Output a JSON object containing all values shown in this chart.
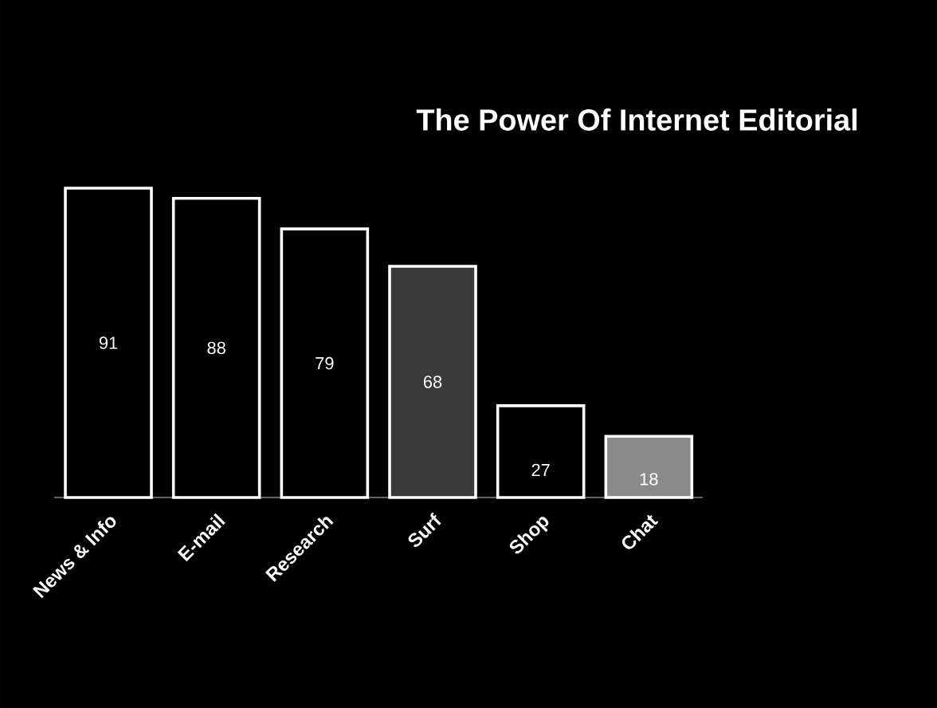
{
  "chart_data": {
    "type": "bar",
    "title": "The Power Of Internet Editorial",
    "categories": [
      "News & Info",
      "E-mail",
      "Research",
      "Surf",
      "Shop",
      "Chat"
    ],
    "values": [
      91,
      88,
      79,
      68,
      27,
      18
    ],
    "colors": [
      "#000000",
      "#000000",
      "#000000",
      "#3a3a3a",
      "#000000",
      "#8a8a8a"
    ],
    "data_labels": true
  }
}
